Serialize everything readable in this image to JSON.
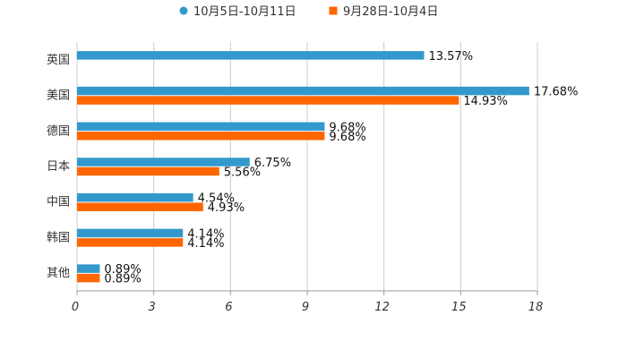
{
  "chart_data": {
    "type": "bar",
    "orientation": "horizontal",
    "title": "",
    "xlabel": "",
    "ylabel": "",
    "categories": [
      "英国",
      "美国",
      "德国",
      "日本",
      "中国",
      "韩国",
      "其他"
    ],
    "series": [
      {
        "name": "10月5日-10月11日",
        "color": "#3399cc",
        "values": [
          13.57,
          17.68,
          9.68,
          6.75,
          4.54,
          4.14,
          0.89
        ],
        "labels": [
          "13.57%",
          "17.68%",
          "9.68%",
          "6.75%",
          "4.54%",
          "4.14%",
          "0.89%"
        ]
      },
      {
        "name": "9月28日-10月4日",
        "color": "#ff6600",
        "values": [
          null,
          14.93,
          9.68,
          5.56,
          4.93,
          4.14,
          0.89
        ],
        "labels": [
          "",
          "14.93%",
          "9.68%",
          "5.56%",
          "4.93%",
          "4.14%",
          "0.89%"
        ]
      }
    ],
    "xlim": [
      0,
      18
    ],
    "xticks": [
      0,
      3,
      6,
      9,
      12,
      15,
      18
    ],
    "xtick_labels": [
      "0",
      "3",
      "6",
      "9",
      "12",
      "15",
      "18"
    ],
    "grid": true,
    "legend_position": "top-center"
  }
}
